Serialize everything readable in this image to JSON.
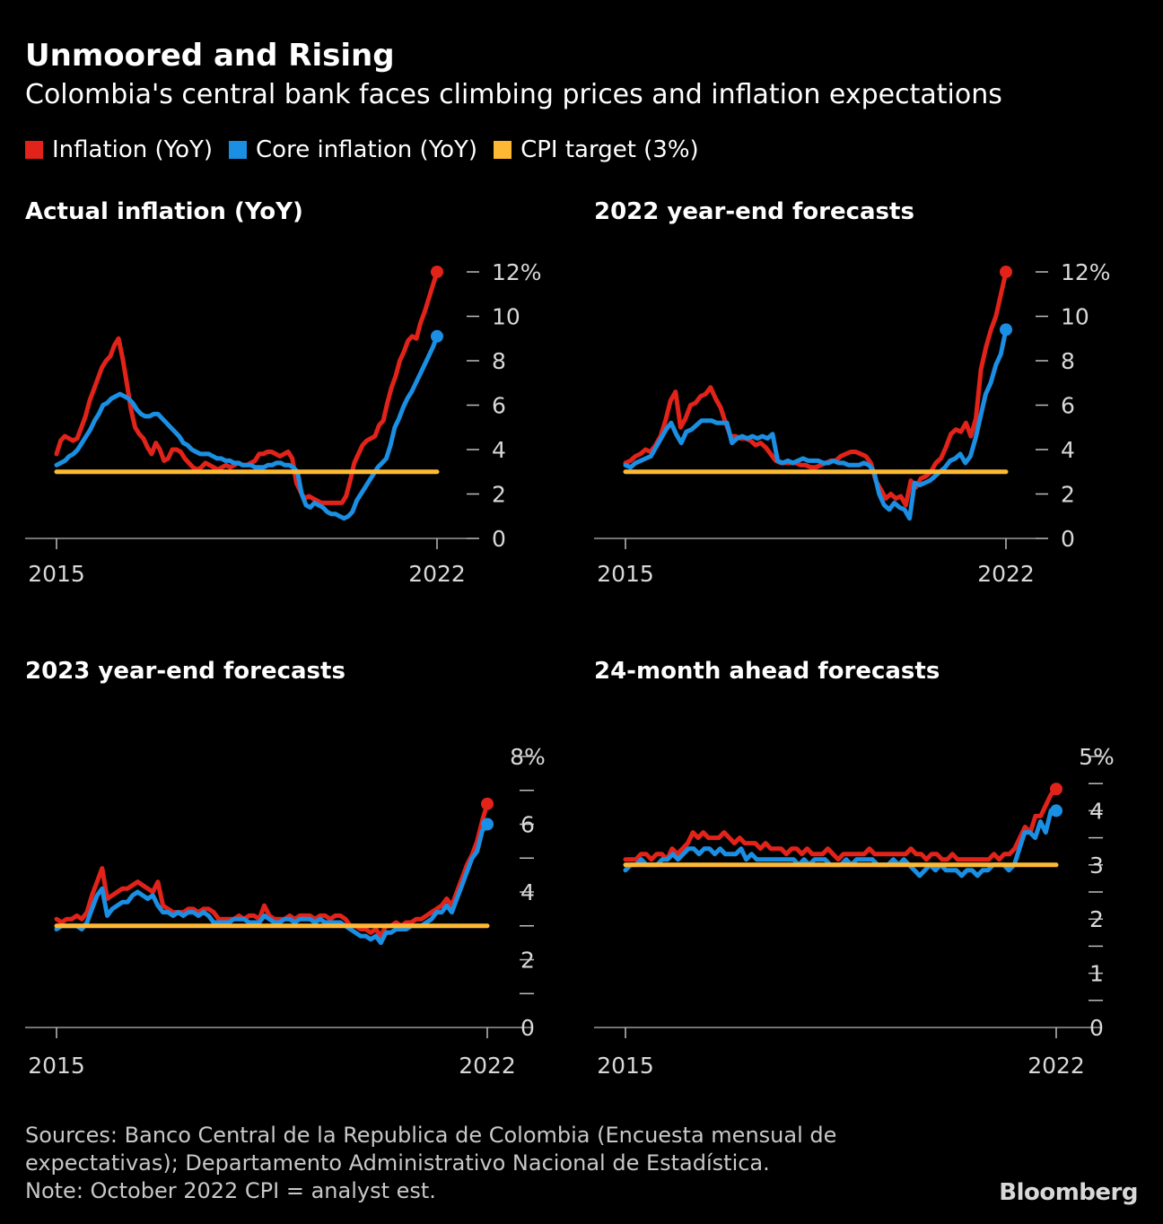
{
  "header": {
    "title": "Unmoored and Rising",
    "subtitle": "Colombia's central bank faces climbing prices and inflation expectations"
  },
  "legend": [
    {
      "label": "Inflation (YoY)",
      "color": "#e2231a"
    },
    {
      "label": "Core inflation (YoY)",
      "color": "#1a8fe3"
    },
    {
      "label": "CPI target (3%)",
      "color": "#fdb933"
    }
  ],
  "footer": {
    "line1": "Sources: Banco Central de la Republica de Colombia (Encuesta mensual de",
    "line2": "expectativas); Departamento Administrativo Nacional de Estadística.",
    "line3": "Note: October 2022 CPI = analyst est."
  },
  "logo": "Bloomberg",
  "chart_data": [
    {
      "type": "line",
      "title": "Actual inflation (YoY)",
      "x_start": 2015.0,
      "x_end": 2022.75,
      "xticks": [
        {
          "value": 2015,
          "label": "2015"
        },
        {
          "value": 2022,
          "label": "2022"
        }
      ],
      "ylim": [
        0,
        12
      ],
      "yticks": [
        {
          "value": 0,
          "label": "0"
        },
        {
          "value": 2,
          "label": "2"
        },
        {
          "value": 4,
          "label": "4"
        },
        {
          "value": 6,
          "label": "6"
        },
        {
          "value": 8,
          "label": "8"
        },
        {
          "value": 10,
          "label": "10"
        },
        {
          "value": 12,
          "label": "12%"
        }
      ],
      "target": 3,
      "series": [
        {
          "name": "Inflation (YoY)",
          "color": "#e2231a",
          "values": [
            3.8,
            4.4,
            4.6,
            4.5,
            4.4,
            4.5,
            5.0,
            5.5,
            6.2,
            6.7,
            7.2,
            7.7,
            8.0,
            8.2,
            8.7,
            9.0,
            8.1,
            7.0,
            5.8,
            5.0,
            4.7,
            4.5,
            4.1,
            3.8,
            4.3,
            4.0,
            3.5,
            3.6,
            4.0,
            4.0,
            3.9,
            3.6,
            3.4,
            3.2,
            3.1,
            3.2,
            3.4,
            3.3,
            3.2,
            3.1,
            3.2,
            3.3,
            3.2,
            3.3,
            3.4,
            3.3,
            3.3,
            3.4,
            3.5,
            3.8,
            3.8,
            3.9,
            3.9,
            3.8,
            3.7,
            3.8,
            3.9,
            3.6,
            2.5,
            2.1,
            1.8,
            1.9,
            1.8,
            1.7,
            1.6,
            1.6,
            1.6,
            1.6,
            1.6,
            1.6,
            1.9,
            2.6,
            3.4,
            3.8,
            4.2,
            4.4,
            4.5,
            4.6,
            5.1,
            5.3,
            6.1,
            6.8,
            7.3,
            8.0,
            8.4,
            8.9,
            9.1,
            9.0,
            9.7,
            10.2,
            10.8,
            11.4,
            12.0
          ]
        },
        {
          "name": "Core inflation (YoY)",
          "color": "#1a8fe3",
          "values": [
            3.3,
            3.4,
            3.5,
            3.7,
            3.8,
            4.0,
            4.3,
            4.6,
            4.9,
            5.3,
            5.6,
            6.0,
            6.1,
            6.3,
            6.4,
            6.5,
            6.4,
            6.3,
            6.1,
            5.8,
            5.6,
            5.5,
            5.5,
            5.6,
            5.6,
            5.4,
            5.2,
            5.0,
            4.8,
            4.6,
            4.3,
            4.2,
            4.0,
            3.9,
            3.8,
            3.8,
            3.8,
            3.7,
            3.6,
            3.6,
            3.5,
            3.5,
            3.4,
            3.4,
            3.3,
            3.3,
            3.3,
            3.2,
            3.2,
            3.2,
            3.3,
            3.3,
            3.4,
            3.4,
            3.3,
            3.3,
            3.2,
            3.0,
            2.0,
            1.5,
            1.4,
            1.6,
            1.5,
            1.4,
            1.2,
            1.1,
            1.1,
            1.0,
            0.9,
            1.0,
            1.2,
            1.7,
            2.0,
            2.3,
            2.6,
            2.9,
            3.2,
            3.4,
            3.6,
            4.2,
            5.0,
            5.4,
            5.9,
            6.3,
            6.6,
            7.0,
            7.4,
            7.8,
            8.2,
            8.6,
            9.1
          ]
        }
      ]
    },
    {
      "type": "line",
      "title": "2022 year-end forecasts",
      "x_start": 2015.0,
      "x_end": 2022.75,
      "xticks": [
        {
          "value": 2015,
          "label": "2015"
        },
        {
          "value": 2022,
          "label": "2022"
        }
      ],
      "ylim": [
        0,
        12
      ],
      "yticks": [
        {
          "value": 0,
          "label": "0"
        },
        {
          "value": 2,
          "label": "2"
        },
        {
          "value": 4,
          "label": "4"
        },
        {
          "value": 6,
          "label": "6"
        },
        {
          "value": 8,
          "label": "8"
        },
        {
          "value": 10,
          "label": "10"
        },
        {
          "value": 12,
          "label": "12%"
        }
      ],
      "target": 3,
      "series": [
        {
          "name": "Inflation (YoY)",
          "color": "#e2231a",
          "values": [
            3.4,
            3.5,
            3.7,
            3.8,
            4.0,
            3.9,
            4.2,
            4.6,
            5.3,
            6.2,
            6.6,
            5.0,
            5.4,
            6.0,
            6.1,
            6.4,
            6.5,
            6.8,
            6.3,
            5.9,
            5.2,
            4.6,
            4.6,
            4.5,
            4.5,
            4.4,
            4.2,
            4.3,
            4.1,
            3.8,
            3.5,
            3.4,
            3.4,
            3.4,
            3.4,
            3.3,
            3.3,
            3.2,
            3.2,
            3.3,
            3.4,
            3.5,
            3.5,
            3.7,
            3.8,
            3.9,
            3.9,
            3.8,
            3.7,
            3.4,
            2.6,
            2.2,
            1.8,
            2.0,
            1.8,
            1.9,
            1.5,
            2.6,
            2.3,
            2.7,
            2.8,
            3.0,
            3.4,
            3.6,
            4.1,
            4.7,
            4.9,
            4.8,
            5.2,
            4.6,
            5.4,
            7.6,
            8.6,
            9.4,
            10.0,
            11.0,
            12.0
          ]
        },
        {
          "name": "Core inflation (YoY)",
          "color": "#1a8fe3",
          "values": [
            3.3,
            3.2,
            3.4,
            3.5,
            3.6,
            3.7,
            4.1,
            4.5,
            4.9,
            5.2,
            4.7,
            4.3,
            4.8,
            4.9,
            5.1,
            5.3,
            5.3,
            5.3,
            5.2,
            5.2,
            5.2,
            4.3,
            4.5,
            4.6,
            4.5,
            4.6,
            4.5,
            4.6,
            4.5,
            4.7,
            3.5,
            3.4,
            3.5,
            3.4,
            3.5,
            3.6,
            3.5,
            3.5,
            3.5,
            3.4,
            3.4,
            3.5,
            3.4,
            3.4,
            3.3,
            3.3,
            3.3,
            3.4,
            3.3,
            3.0,
            2.0,
            1.5,
            1.3,
            1.6,
            1.4,
            1.3,
            0.9,
            2.5,
            2.4,
            2.5,
            2.6,
            2.8,
            3.0,
            3.2,
            3.5,
            3.6,
            3.8,
            3.4,
            3.7,
            4.5,
            5.5,
            6.5,
            7.0,
            7.8,
            8.3,
            9.4
          ]
        }
      ]
    },
    {
      "type": "line",
      "title": "2023 year-end forecasts",
      "x_start": 2015.0,
      "x_end": 2022.75,
      "xticks": [
        {
          "value": 2015,
          "label": "2015"
        },
        {
          "value": 2022,
          "label": "2022"
        }
      ],
      "ylim": [
        0,
        8
      ],
      "yticks": [
        {
          "value": 0,
          "label": "0"
        },
        {
          "value": 1,
          "label": ""
        },
        {
          "value": 2,
          "label": "2"
        },
        {
          "value": 3,
          "label": ""
        },
        {
          "value": 4,
          "label": "4"
        },
        {
          "value": 5,
          "label": ""
        },
        {
          "value": 6,
          "label": "6"
        },
        {
          "value": 7,
          "label": ""
        },
        {
          "value": 8,
          "label": "8%"
        }
      ],
      "target": 3,
      "series": [
        {
          "name": "Inflation (YoY)",
          "color": "#e2231a",
          "values": [
            3.2,
            3.1,
            3.2,
            3.2,
            3.3,
            3.2,
            3.4,
            3.9,
            4.3,
            4.7,
            3.8,
            3.9,
            4.0,
            4.1,
            4.1,
            4.2,
            4.3,
            4.2,
            4.1,
            4.0,
            4.3,
            3.6,
            3.5,
            3.4,
            3.4,
            3.4,
            3.5,
            3.5,
            3.4,
            3.5,
            3.5,
            3.4,
            3.2,
            3.2,
            3.2,
            3.2,
            3.3,
            3.2,
            3.3,
            3.3,
            3.2,
            3.6,
            3.3,
            3.2,
            3.2,
            3.2,
            3.3,
            3.2,
            3.3,
            3.3,
            3.3,
            3.2,
            3.3,
            3.3,
            3.2,
            3.3,
            3.3,
            3.2,
            3.0,
            3.0,
            2.9,
            2.9,
            2.8,
            2.9,
            2.7,
            3.0,
            3.0,
            3.1,
            3.0,
            3.1,
            3.1,
            3.2,
            3.2,
            3.3,
            3.4,
            3.5,
            3.6,
            3.8,
            3.6,
            4.0,
            4.4,
            4.8,
            5.1,
            5.5,
            6.1,
            6.6
          ]
        },
        {
          "name": "Core inflation (YoY)",
          "color": "#1a8fe3",
          "values": [
            2.9,
            3.0,
            3.0,
            3.0,
            3.0,
            2.9,
            3.1,
            3.5,
            3.9,
            4.1,
            3.3,
            3.5,
            3.6,
            3.7,
            3.7,
            3.9,
            4.0,
            3.9,
            3.8,
            3.9,
            3.6,
            3.4,
            3.4,
            3.3,
            3.4,
            3.3,
            3.4,
            3.4,
            3.3,
            3.4,
            3.3,
            3.1,
            3.1,
            3.1,
            3.1,
            3.2,
            3.2,
            3.2,
            3.1,
            3.1,
            3.1,
            3.3,
            3.2,
            3.1,
            3.1,
            3.2,
            3.2,
            3.1,
            3.2,
            3.2,
            3.2,
            3.1,
            3.2,
            3.1,
            3.1,
            3.1,
            3.1,
            3.0,
            2.9,
            2.8,
            2.7,
            2.7,
            2.6,
            2.7,
            2.5,
            2.8,
            2.8,
            2.9,
            2.9,
            2.9,
            3.0,
            3.0,
            3.0,
            3.1,
            3.2,
            3.4,
            3.4,
            3.6,
            3.4,
            3.8,
            4.2,
            4.6,
            5.0,
            5.2,
            5.8,
            6.0
          ]
        }
      ]
    },
    {
      "type": "line",
      "title": "24-month ahead forecasts",
      "x_start": 2015.0,
      "x_end": 2022.75,
      "xticks": [
        {
          "value": 2015,
          "label": "2015"
        },
        {
          "value": 2022,
          "label": "2022"
        }
      ],
      "ylim": [
        0,
        5
      ],
      "yticks": [
        {
          "value": 0,
          "label": "0"
        },
        {
          "value": 0.5,
          "label": ""
        },
        {
          "value": 1,
          "label": "1"
        },
        {
          "value": 1.5,
          "label": ""
        },
        {
          "value": 2,
          "label": "2"
        },
        {
          "value": 2.5,
          "label": ""
        },
        {
          "value": 3,
          "label": "3"
        },
        {
          "value": 3.5,
          "label": ""
        },
        {
          "value": 4,
          "label": "4"
        },
        {
          "value": 4.5,
          "label": ""
        },
        {
          "value": 5,
          "label": "5%"
        }
      ],
      "target": 3,
      "series": [
        {
          "name": "Inflation (YoY)",
          "color": "#e2231a",
          "values": [
            3.1,
            3.1,
            3.1,
            3.2,
            3.2,
            3.1,
            3.2,
            3.2,
            3.1,
            3.3,
            3.2,
            3.3,
            3.4,
            3.6,
            3.5,
            3.6,
            3.5,
            3.5,
            3.5,
            3.6,
            3.5,
            3.4,
            3.5,
            3.4,
            3.4,
            3.4,
            3.3,
            3.4,
            3.3,
            3.3,
            3.3,
            3.2,
            3.3,
            3.3,
            3.2,
            3.3,
            3.2,
            3.2,
            3.2,
            3.3,
            3.2,
            3.1,
            3.2,
            3.2,
            3.2,
            3.2,
            3.2,
            3.3,
            3.2,
            3.2,
            3.2,
            3.2,
            3.2,
            3.2,
            3.2,
            3.3,
            3.2,
            3.2,
            3.1,
            3.2,
            3.2,
            3.1,
            3.1,
            3.2,
            3.1,
            3.1,
            3.1,
            3.1,
            3.1,
            3.1,
            3.1,
            3.2,
            3.1,
            3.2,
            3.2,
            3.3,
            3.5,
            3.7,
            3.6,
            3.9,
            3.9,
            4.1,
            4.3,
            4.4
          ]
        },
        {
          "name": "Core inflation (YoY)",
          "color": "#1a8fe3",
          "values": [
            2.9,
            3.0,
            3.0,
            3.1,
            3.0,
            3.0,
            3.0,
            3.1,
            3.1,
            3.2,
            3.1,
            3.2,
            3.3,
            3.3,
            3.2,
            3.3,
            3.3,
            3.2,
            3.3,
            3.2,
            3.2,
            3.2,
            3.3,
            3.1,
            3.2,
            3.1,
            3.1,
            3.1,
            3.1,
            3.1,
            3.1,
            3.1,
            3.1,
            3.0,
            3.1,
            3.0,
            3.1,
            3.1,
            3.1,
            3.0,
            3.0,
            3.0,
            3.1,
            3.0,
            3.1,
            3.1,
            3.1,
            3.1,
            3.0,
            3.0,
            3.0,
            3.1,
            3.0,
            3.1,
            3.0,
            2.9,
            2.8,
            2.9,
            3.0,
            2.9,
            3.0,
            2.9,
            2.9,
            2.9,
            2.8,
            2.9,
            2.9,
            2.8,
            2.9,
            2.9,
            3.0,
            3.0,
            3.0,
            2.9,
            3.0,
            3.3,
            3.6,
            3.6,
            3.5,
            3.8,
            3.6,
            4.0,
            4.0
          ]
        }
      ]
    }
  ]
}
